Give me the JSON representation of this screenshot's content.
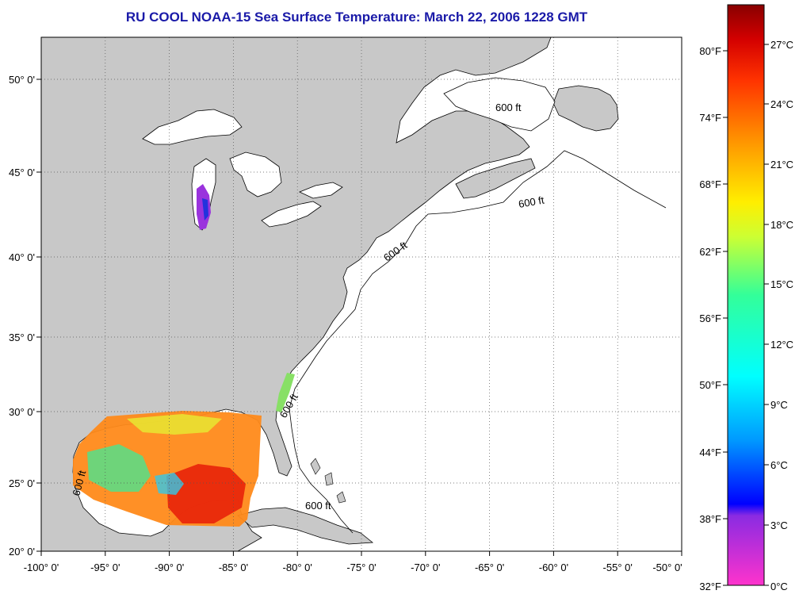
{
  "title": "RU COOL  NOAA-15  Sea Surface Temperature:  March 22, 2006 1228 GMT",
  "map": {
    "lon_range": [
      -100,
      -50
    ],
    "lat_range": [
      20,
      52.5
    ],
    "lon_labels": [
      "-100° 0'",
      "-95° 0'",
      "-90° 0'",
      "-85° 0'",
      "-80° 0'",
      "-75° 0'",
      "-70° 0'",
      "-65° 0'",
      "-60° 0'",
      "-55° 0'",
      "-50° 0'"
    ],
    "lat_labels": [
      "20° 0'",
      "25° 0'",
      "30° 0'",
      "35° 0'",
      "40° 0'",
      "45° 0'",
      "50° 0'"
    ],
    "contour_label": "600 ft",
    "grid": "dotted",
    "land_color": "#c8c8c8",
    "ocean_color": "#ffffff"
  },
  "colorbar": {
    "fahrenheit_labels": [
      "32°F",
      "38°F",
      "44°F",
      "50°F",
      "56°F",
      "62°F",
      "68°F",
      "74°F",
      "80°F"
    ],
    "celsius_labels": [
      "0°C",
      "3°C",
      "6°C",
      "9°C",
      "12°C",
      "15°C",
      "18°C",
      "21°C",
      "24°C",
      "27°C"
    ],
    "colors": [
      "#ff33cc",
      "#8a2be2",
      "#0000ff",
      "#0099ff",
      "#00ffff",
      "#33ff99",
      "#ccff33",
      "#ffee00",
      "#ff9900",
      "#ff3300",
      "#d40000",
      "#880000"
    ]
  }
}
